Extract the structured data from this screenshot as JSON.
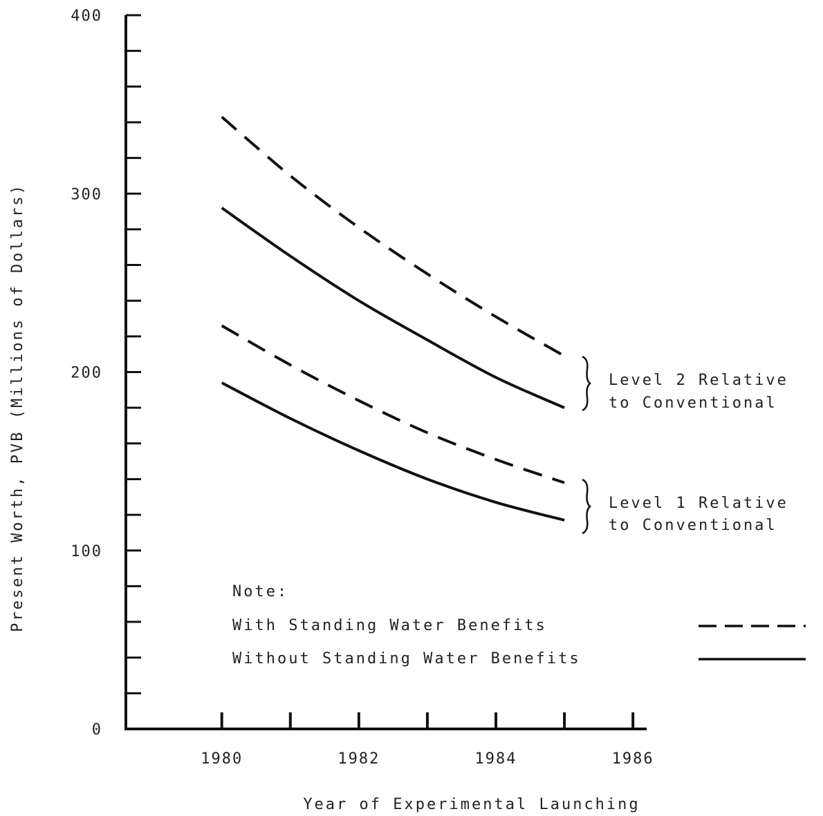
{
  "chart_data": {
    "type": "line",
    "xlabel": "Year of Experimental Launching",
    "ylabel": "Present Worth, PVB (Millions of Dollars)",
    "xlim": [
      1978.6,
      1986.2
    ],
    "ylim": [
      0,
      400
    ],
    "x_ticks": [
      1980,
      1981,
      1982,
      1983,
      1984,
      1985,
      1986
    ],
    "x_tick_labels": [
      "1980",
      "1982",
      "1984",
      "1986"
    ],
    "x_tick_label_values": [
      1980,
      1982,
      1984,
      1986
    ],
    "y_ticks": [
      0,
      20,
      40,
      60,
      80,
      100,
      120,
      140,
      160,
      180,
      200,
      220,
      240,
      260,
      280,
      300,
      320,
      340,
      360,
      380,
      400
    ],
    "y_tick_labels": [
      "0",
      "100",
      "200",
      "300",
      "400"
    ],
    "y_tick_label_values": [
      0,
      100,
      200,
      300,
      400
    ],
    "grid": false,
    "series": [
      {
        "group": "level2",
        "style": "dashed",
        "x": [
          1980,
          1981,
          1982,
          1983,
          1984,
          1985
        ],
        "values": [
          343,
          310,
          281,
          255,
          231,
          209
        ]
      },
      {
        "group": "level2",
        "style": "solid",
        "x": [
          1980,
          1981,
          1982,
          1983,
          1984,
          1985
        ],
        "values": [
          292,
          265,
          240,
          218,
          197,
          180
        ]
      },
      {
        "group": "level1",
        "style": "dashed",
        "x": [
          1980,
          1981,
          1982,
          1983,
          1984,
          1985
        ],
        "values": [
          226,
          204,
          184,
          166,
          151,
          138
        ]
      },
      {
        "group": "level1",
        "style": "solid",
        "x": [
          1980,
          1981,
          1982,
          1983,
          1984,
          1985
        ],
        "values": [
          194,
          174,
          156,
          140,
          127,
          117
        ]
      }
    ],
    "annotations": {
      "level2": [
        "Level 2 Relative",
        "to Conventional"
      ],
      "level1": [
        "Level 1 Relative",
        "to Conventional"
      ]
    },
    "note": {
      "heading": "Note:",
      "with_label": "With Standing Water Benefits",
      "without_label": "Without Standing Water Benefits"
    },
    "colors": {
      "ink": "#111111",
      "background": "#ffffff"
    }
  }
}
